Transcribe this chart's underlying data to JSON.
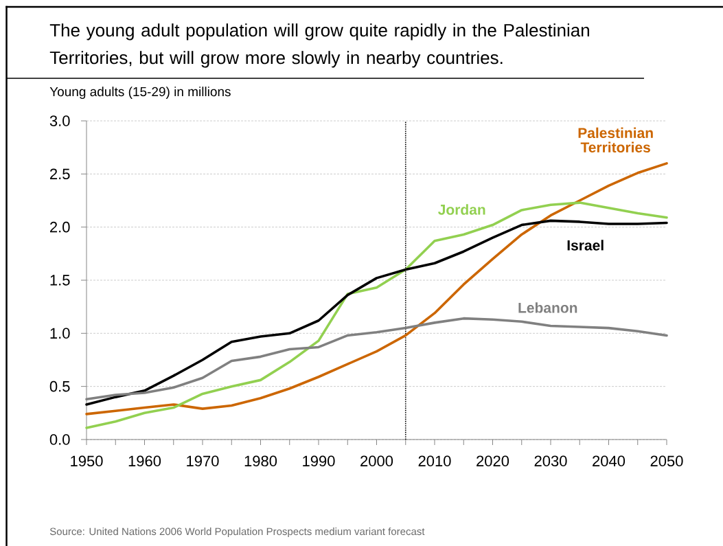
{
  "chart_data": {
    "type": "line",
    "title": "The young adult population will grow quite rapidly in the Palestinian Territories, but will grow more slowly in nearby countries.",
    "ylabel": "Young adults (15-29) in millions",
    "annotations": [
      "Source: United Nations 2006 World Population Prospects medium variant forecast"
    ],
    "x": [
      1950,
      1955,
      1960,
      1965,
      1970,
      1975,
      1980,
      1985,
      1990,
      1995,
      2000,
      2005,
      2010,
      2015,
      2020,
      2025,
      2030,
      2035,
      2040,
      2045,
      2050
    ],
    "series": [
      {
        "name": "Palestinian Territories",
        "color": "#cc6600",
        "values": [
          0.24,
          0.27,
          0.3,
          0.33,
          0.29,
          0.32,
          0.39,
          0.48,
          0.59,
          0.71,
          0.83,
          0.98,
          1.19,
          1.46,
          1.7,
          1.93,
          2.11,
          2.25,
          2.39,
          2.51,
          2.6
        ]
      },
      {
        "name": "Jordan",
        "color": "#92d050",
        "values": [
          0.11,
          0.17,
          0.25,
          0.3,
          0.43,
          0.5,
          0.56,
          0.73,
          0.93,
          1.37,
          1.43,
          1.6,
          1.87,
          1.93,
          2.02,
          2.16,
          2.21,
          2.23,
          2.18,
          2.13,
          2.09
        ]
      },
      {
        "name": "Israel",
        "color": "#000000",
        "values": [
          0.33,
          0.4,
          0.46,
          0.6,
          0.75,
          0.92,
          0.97,
          1.0,
          1.12,
          1.36,
          1.52,
          1.6,
          1.66,
          1.77,
          1.9,
          2.02,
          2.06,
          2.05,
          2.03,
          2.03,
          2.04
        ]
      },
      {
        "name": "Lebanon",
        "color": "#808080",
        "values": [
          0.38,
          0.42,
          0.44,
          0.49,
          0.58,
          0.74,
          0.78,
          0.85,
          0.87,
          0.98,
          1.01,
          1.05,
          1.1,
          1.14,
          1.13,
          1.11,
          1.07,
          1.06,
          1.05,
          1.02,
          0.98
        ]
      }
    ],
    "xlim": [
      1950,
      2050
    ],
    "xticks": [
      1950,
      {
        "value": 1955,
        "label": null
      },
      1960,
      {
        "value": 1965,
        "label": null
      },
      1970,
      {
        "value": 1975,
        "label": null
      },
      1980,
      {
        "value": 1985,
        "label": null
      },
      1990,
      {
        "value": 1995,
        "label": null
      },
      2000,
      {
        "value": 2005,
        "label": null
      },
      2010,
      {
        "value": 2015,
        "label": null
      },
      2020,
      {
        "value": 2025,
        "label": null
      },
      2030,
      {
        "value": 2035,
        "label": null
      },
      2040,
      {
        "value": 2045,
        "label": null
      },
      2050
    ],
    "ylim": [
      0,
      3
    ],
    "yticks": [
      {
        "value": 0,
        "label": "0.0"
      },
      0.5,
      {
        "value": 1,
        "label": "1.0"
      },
      1.5,
      {
        "value": 2,
        "label": "2.0"
      },
      2.5,
      {
        "value": 3,
        "label": "3.0"
      }
    ],
    "grid": "y",
    "marker": "none",
    "line_style": "solid",
    "ref_lines": [
      {
        "axis": "x",
        "value": 2005,
        "color": "#000000",
        "line_style": "dotted"
      }
    ]
  }
}
